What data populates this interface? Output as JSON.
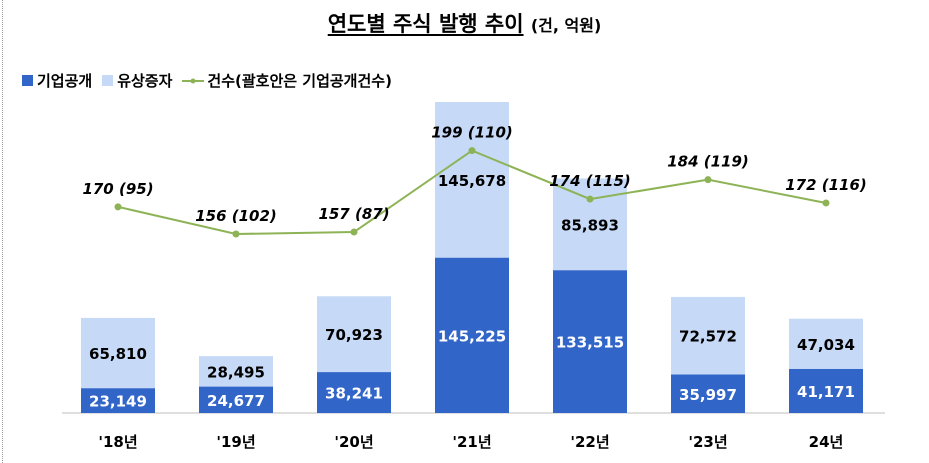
{
  "chart_data": {
    "type": "bar",
    "title": "연도별 주식 발행 추이",
    "title_unit": "(건, 억원)",
    "categories": [
      "'18년",
      "'19년",
      "'20년",
      "'21년",
      "'22년",
      "'23년",
      "24년"
    ],
    "series": [
      {
        "name": "기업공개",
        "type": "stacked-bar",
        "color": "#3265c8",
        "values": [
          23149,
          24677,
          38241,
          145225,
          133515,
          35997,
          41171
        ]
      },
      {
        "name": "유상증자",
        "type": "stacked-bar",
        "color": "#c6d9f6",
        "values": [
          65810,
          28495,
          70923,
          145678,
          85893,
          72572,
          47034
        ]
      },
      {
        "name": "건수(괄호안은 기업공개건수)",
        "type": "line",
        "color": "#8db356",
        "values": [
          170,
          156,
          157,
          199,
          174,
          184,
          172
        ],
        "ipo_counts": [
          95,
          102,
          87,
          110,
          115,
          119,
          116
        ]
      }
    ],
    "count_labels": [
      "170 (95)",
      "156 (102)",
      "157 (87)",
      "199 (110)",
      "174 (115)",
      "184 (119)",
      "172 (116)"
    ],
    "bar_labels": {
      "ipo": [
        "23,149",
        "24,677",
        "38,241",
        "145,225",
        "133,515",
        "35,997",
        "41,171"
      ],
      "rights": [
        "65,810",
        "28,495",
        "70,923",
        "145,678",
        "85,893",
        "72,572",
        "47,034"
      ]
    },
    "legend_position": "top-left",
    "grid": false
  }
}
